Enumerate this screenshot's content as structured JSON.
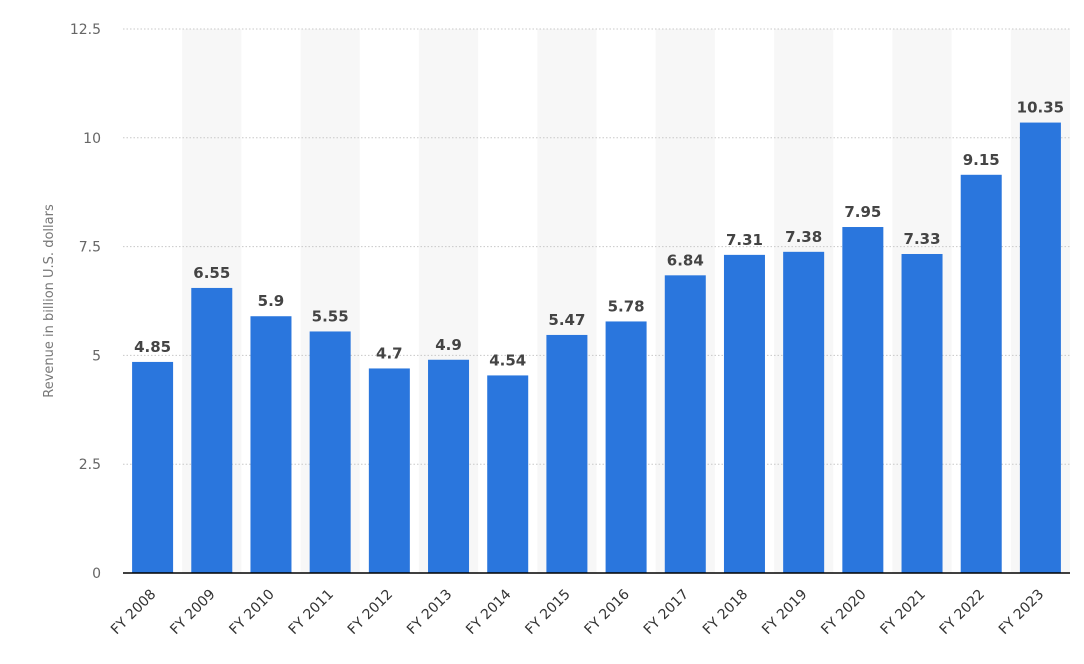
{
  "chart_data": {
    "type": "bar",
    "categories": [
      "FY 2008",
      "FY 2009",
      "FY 2010",
      "FY 2011",
      "FY 2012",
      "FY 2013",
      "FY 2014",
      "FY 2015",
      "FY 2016",
      "FY 2017",
      "FY 2018",
      "FY 2019",
      "FY 2020",
      "FY 2021",
      "FY 2022",
      "FY 2023"
    ],
    "values": [
      4.85,
      6.55,
      5.9,
      5.55,
      4.7,
      4.9,
      4.54,
      5.47,
      5.78,
      6.84,
      7.31,
      7.38,
      7.95,
      7.33,
      9.15,
      10.35
    ],
    "value_labels": [
      "4.85",
      "6.55",
      "5.9",
      "5.55",
      "4.7",
      "4.9",
      "4.54",
      "5.47",
      "5.78",
      "6.84",
      "7.31",
      "7.38",
      "7.95",
      "7.33",
      "9.15",
      "10.35"
    ],
    "title": "",
    "xlabel": "",
    "ylabel": "Revenue in billion U.S. dollars",
    "ylim": [
      0,
      12.5
    ],
    "yticks": [
      0,
      2.5,
      5,
      7.5,
      10,
      12.5
    ],
    "ytick_labels": [
      "0",
      "2.5",
      "5",
      "7.5",
      "10",
      "12.5"
    ],
    "grid": true,
    "legend": "none",
    "colors": {
      "bar": "#2a76dd",
      "band": "#f7f7f7",
      "grid": "#c8c8c8",
      "axis": "#000000",
      "value_label": "#444444"
    }
  }
}
